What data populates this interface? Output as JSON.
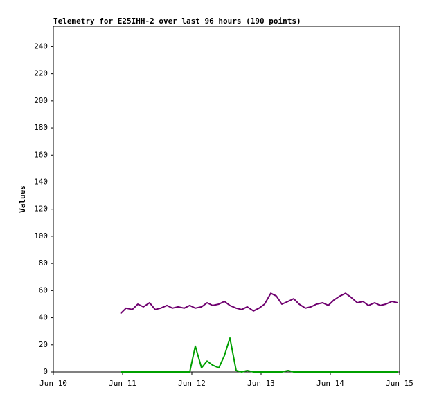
{
  "chart_data": {
    "type": "line",
    "title": "Telemetry for E25IHH-2 over last 96 hours (190 points)",
    "y_label": "Values",
    "x": [
      0.97,
      1.05,
      1.14,
      1.22,
      1.3,
      1.39,
      1.47,
      1.55,
      1.64,
      1.72,
      1.8,
      1.89,
      1.97,
      2.05,
      2.14,
      2.22,
      2.3,
      2.39,
      2.47,
      2.55,
      2.64,
      2.72,
      2.8,
      2.89,
      2.97,
      3.05,
      3.14,
      3.22,
      3.3,
      3.39,
      3.47,
      3.55,
      3.64,
      3.72,
      3.8,
      3.89,
      3.97,
      4.05,
      4.14,
      4.22,
      4.3,
      4.39,
      4.47,
      4.55,
      4.64,
      4.72,
      4.8,
      4.89,
      4.97
    ],
    "series": [
      {
        "color": "#6f006f",
        "values": [
          43,
          47,
          46,
          50,
          48,
          51,
          46,
          47,
          49,
          47,
          48,
          47,
          49,
          47,
          48,
          51,
          49,
          50,
          52,
          49,
          47,
          46,
          48,
          45,
          47,
          50,
          58,
          56,
          50,
          52,
          54,
          50,
          47,
          48,
          50,
          51,
          49,
          53,
          56,
          58,
          55,
          51,
          52,
          49,
          51,
          49,
          50,
          52,
          51
        ]
      },
      {
        "color": "#00a000",
        "values": [
          0,
          0,
          0,
          0,
          0,
          0,
          0,
          0,
          0,
          0,
          0,
          0,
          0,
          19,
          3,
          8,
          5,
          3,
          12,
          25,
          1,
          0,
          1,
          0,
          0,
          0,
          0,
          0,
          0,
          1,
          0,
          0,
          0,
          0,
          0,
          0,
          0,
          0,
          0,
          0,
          0,
          0,
          0,
          0,
          0,
          0,
          0,
          0,
          0
        ]
      }
    ],
    "xlim": [
      0,
      5
    ],
    "xticks": [
      {
        "value": 0,
        "label": "Jun 10"
      },
      {
        "value": 1,
        "label": "Jun 11"
      },
      {
        "value": 2,
        "label": "Jun 12"
      },
      {
        "value": 3,
        "label": "Jun 13"
      },
      {
        "value": 4,
        "label": "Jun 14"
      },
      {
        "value": 5,
        "label": "Jun 15"
      }
    ],
    "ylim": [
      0,
      255
    ],
    "yticks": [
      0,
      20,
      40,
      60,
      80,
      100,
      120,
      140,
      160,
      180,
      200,
      220,
      240
    ],
    "grid": false
  }
}
